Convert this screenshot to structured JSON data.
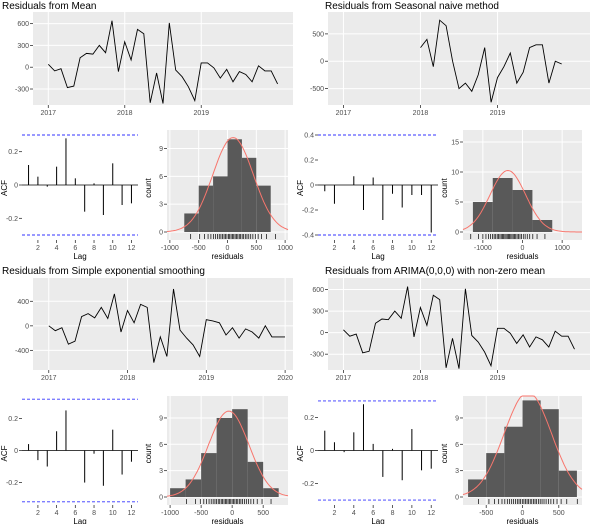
{
  "chart_data": [
    {
      "title": "Residuals from Mean",
      "ts": {
        "type": "line",
        "x_range": [
          2016.8,
          2020.2
        ],
        "ylim": [
          -520,
          760
        ],
        "x_ticks": [
          2017,
          2018,
          2019
        ],
        "y_ticks": [
          -300,
          0,
          300,
          600
        ],
        "x_start": 2017.0,
        "x_step": 0.0833,
        "values": [
          40,
          -50,
          -20,
          -280,
          -260,
          130,
          190,
          180,
          300,
          200,
          640,
          -60,
          350,
          100,
          520,
          460,
          -490,
          -80,
          -500,
          610,
          -40,
          -130,
          -270,
          -460,
          60,
          60,
          -10,
          -150,
          -30,
          -200,
          -60,
          -100,
          -200,
          20,
          -50,
          -50,
          -230
        ]
      },
      "acf": {
        "type": "bar",
        "xlabel": "Lag",
        "ylabel": "ACF",
        "lags": [
          1,
          2,
          3,
          4,
          5,
          6,
          7,
          8,
          9,
          10,
          11,
          12
        ],
        "values": [
          0.12,
          0.05,
          -0.01,
          0.11,
          0.28,
          0.04,
          -0.16,
          0.01,
          -0.18,
          0.13,
          -0.12,
          -0.11
        ],
        "ylim": [
          -0.33,
          0.33
        ],
        "y_ticks": [
          -0.2,
          0,
          0.2
        ],
        "x_ticks": [
          2,
          4,
          6,
          8,
          10,
          12
        ],
        "ci": 0.3
      },
      "hist": {
        "type": "bar",
        "xlabel": "residuals",
        "ylabel": "count",
        "bin_edges": [
          -750,
          -500,
          -250,
          0,
          250,
          500,
          750
        ],
        "counts": [
          2,
          5,
          6,
          10,
          8,
          5
        ],
        "ylim": [
          0,
          11
        ],
        "y_ticks": [
          0,
          3,
          6,
          9
        ],
        "x_ticks": [
          -1000,
          -500,
          0,
          500,
          1000
        ],
        "x_range": [
          -1050,
          1050
        ]
      }
    },
    {
      "title": "Residuals from Seasonal naive method",
      "ts": {
        "type": "line",
        "x_range": [
          2016.8,
          2020.2
        ],
        "ylim": [
          -800,
          900
        ],
        "x_ticks": [
          2017,
          2018,
          2019
        ],
        "y_ticks": [
          -500,
          0,
          500
        ],
        "x_start": 2018.0,
        "x_step": 0.0833,
        "values": [
          250,
          400,
          -100,
          750,
          650,
          0,
          -500,
          -400,
          -550,
          -250,
          250,
          -750,
          -300,
          -100,
          150,
          -400,
          -200,
          250,
          300,
          300,
          -400,
          0,
          -50
        ]
      },
      "acf": {
        "type": "bar",
        "xlabel": "Lag",
        "ylabel": "ACF",
        "lags": [
          1,
          2,
          3,
          4,
          5,
          6,
          7,
          8,
          9,
          10,
          11,
          12
        ],
        "values": [
          -0.05,
          -0.15,
          0.0,
          0.07,
          -0.2,
          0.06,
          -0.28,
          -0.07,
          -0.18,
          -0.08,
          -0.08,
          -0.38
        ],
        "ylim": [
          -0.44,
          0.44
        ],
        "y_ticks": [
          -0.4,
          -0.2,
          0,
          0.2,
          0.4
        ],
        "x_ticks": [
          2,
          4,
          6,
          8,
          10,
          12
        ],
        "ci": 0.4
      },
      "hist": {
        "type": "bar",
        "xlabel": "residuals",
        "ylabel": "count",
        "bin_edges": [
          -1250,
          -750,
          -250,
          250,
          750,
          1250
        ],
        "counts": [
          5,
          9,
          7,
          2,
          0
        ],
        "ylim": [
          0,
          17
        ],
        "y_ticks": [
          0,
          5,
          10,
          15
        ],
        "x_ticks": [
          -1000,
          0,
          1000
        ],
        "x_range": [
          -1500,
          1500
        ]
      }
    },
    {
      "title": "Residuals from Simple exponential smoothing",
      "ts": {
        "type": "line",
        "x_range": [
          2016.8,
          2020.1
        ],
        "ylim": [
          -720,
          780
        ],
        "x_ticks": [
          2017,
          2018,
          2019,
          2020
        ],
        "y_ticks": [
          -400,
          0,
          400
        ],
        "x_start": 2017.0,
        "x_step": 0.0833,
        "values": [
          0,
          -80,
          -30,
          -300,
          -250,
          150,
          200,
          130,
          300,
          120,
          520,
          -100,
          250,
          50,
          350,
          300,
          -600,
          -180,
          -500,
          600,
          -70,
          -200,
          -310,
          -500,
          100,
          80,
          50,
          -150,
          -30,
          -200,
          -50,
          -100,
          -200,
          0,
          -180,
          -180,
          -180
        ]
      },
      "acf": {
        "type": "bar",
        "xlabel": "Lag",
        "ylabel": "ACF",
        "lags": [
          1,
          2,
          3,
          4,
          5,
          6,
          7,
          8,
          9,
          10,
          11,
          12
        ],
        "values": [
          0.04,
          -0.06,
          -0.1,
          0.12,
          0.25,
          0.0,
          -0.2,
          -0.02,
          -0.22,
          0.13,
          -0.15,
          -0.07
        ],
        "ylim": [
          -0.34,
          0.34
        ],
        "y_ticks": [
          -0.2,
          0,
          0.2
        ],
        "x_ticks": [
          2,
          4,
          6,
          8,
          10,
          12
        ],
        "ci": 0.32
      },
      "hist": {
        "type": "bar",
        "xlabel": "residuals",
        "ylabel": "count",
        "bin_edges": [
          -1000,
          -750,
          -500,
          -250,
          0,
          250,
          500,
          750
        ],
        "counts": [
          1,
          2,
          5,
          9,
          10,
          4,
          1
        ],
        "ylim": [
          0,
          11.5
        ],
        "y_ticks": [
          0,
          3,
          6,
          9
        ],
        "x_ticks": [
          -1000,
          -500,
          0,
          500
        ],
        "x_range": [
          -1050,
          900
        ]
      }
    },
    {
      "title": "Residuals from ARIMA(0,0,0) with non-zero mean",
      "ts": {
        "type": "line",
        "x_range": [
          2016.8,
          2020.2
        ],
        "ylim": [
          -520,
          760
        ],
        "x_ticks": [
          2017,
          2018,
          2019
        ],
        "y_ticks": [
          -300,
          0,
          300,
          600
        ],
        "x_start": 2017.0,
        "x_step": 0.0833,
        "values": [
          40,
          -50,
          -20,
          -280,
          -260,
          130,
          190,
          180,
          300,
          200,
          640,
          -60,
          350,
          100,
          520,
          460,
          -490,
          -80,
          -500,
          610,
          -40,
          -130,
          -270,
          -460,
          60,
          60,
          -10,
          -150,
          -30,
          -200,
          -60,
          -100,
          -200,
          20,
          -50,
          -50,
          -230
        ]
      },
      "acf": {
        "type": "bar",
        "xlabel": "Lag",
        "ylabel": "ACF",
        "lags": [
          1,
          2,
          3,
          4,
          5,
          6,
          7,
          8,
          9,
          10,
          11,
          12
        ],
        "values": [
          0.12,
          0.05,
          -0.01,
          0.11,
          0.28,
          0.04,
          -0.16,
          0.01,
          -0.18,
          0.13,
          -0.12,
          -0.11
        ],
        "ylim": [
          -0.33,
          0.33
        ],
        "y_ticks": [
          -0.2,
          0,
          0.2
        ],
        "x_ticks": [
          2,
          4,
          6,
          8,
          10,
          12
        ],
        "ci": 0.3
      },
      "hist": {
        "type": "bar",
        "xlabel": "residuals",
        "ylabel": "count",
        "bin_edges": [
          -750,
          -500,
          -250,
          0,
          250,
          500,
          750
        ],
        "counts": [
          2,
          5,
          8,
          11,
          10,
          3
        ],
        "ylim": [
          0,
          11.5
        ],
        "y_ticks": [
          0,
          3,
          6,
          9
        ],
        "x_ticks": [
          -500,
          0,
          500
        ],
        "x_range": [
          -820,
          820
        ]
      }
    }
  ]
}
